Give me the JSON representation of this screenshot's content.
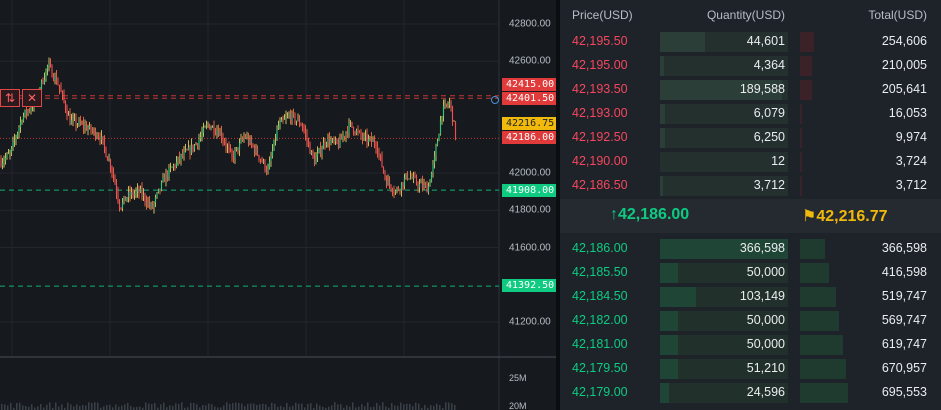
{
  "chart": {
    "axis_ticks": [
      "42800.00",
      "42600.00",
      "42000.00",
      "41800.00",
      "41600.00",
      "41200.00"
    ],
    "axis_tick_prices": [
      42800,
      42600,
      42000,
      41800,
      41600,
      41200
    ],
    "price_lines": [
      {
        "label": "42415.00",
        "price": 42415.0,
        "color": "#e03a3a",
        "style": "dashed"
      },
      {
        "label": "42401.50",
        "price": 42401.5,
        "color": "#e03a3a",
        "style": "dashed"
      },
      {
        "label": "42216.75",
        "price": 42216.75,
        "color": "#f0b90b",
        "style": "none"
      },
      {
        "label": "42186.00",
        "price": 42186.0,
        "color": "#e03a3a",
        "style": "dotted"
      },
      {
        "label": "41908.00",
        "price": 41908.0,
        "color": "#0ecb81",
        "style": "dashed"
      },
      {
        "label": "41392.50",
        "price": 41392.5,
        "color": "#0ecb81",
        "style": "dashed"
      }
    ],
    "volume_ticks": [
      "25M",
      "20M"
    ],
    "order_tools": {
      "reverse_icon": "⇅",
      "close_icon": "✕"
    },
    "colors": {
      "up": "#0ecb81",
      "down": "#f6465d",
      "wick_up": "#c8b860",
      "wick_down": "#e06040"
    }
  },
  "orderbook": {
    "headers": {
      "price": "Price(USD)",
      "quantity": "Quantity(USD)",
      "total": "Total(USD)"
    },
    "asks": [
      {
        "price": "42,195.50",
        "qty": "44,601",
        "total": "254,606",
        "qty_frac": 0.35,
        "tot_frac": 0.3
      },
      {
        "price": "42,195.00",
        "qty": "4,364",
        "total": "210,005",
        "qty_frac": 0.03,
        "tot_frac": 0.25
      },
      {
        "price": "42,193.50",
        "qty": "189,588",
        "total": "205,641",
        "qty_frac": 0.95,
        "tot_frac": 0.24
      },
      {
        "price": "42,193.00",
        "qty": "6,079",
        "total": "16,053",
        "qty_frac": 0.04,
        "tot_frac": 0.02
      },
      {
        "price": "42,192.50",
        "qty": "6,250",
        "total": "9,974",
        "qty_frac": 0.04,
        "tot_frac": 0.01
      },
      {
        "price": "42,190.00",
        "qty": "12",
        "total": "3,724",
        "qty_frac": 0.0,
        "tot_frac": 0.0
      },
      {
        "price": "42,186.50",
        "qty": "3,712",
        "total": "3,712",
        "qty_frac": 0.02,
        "tot_frac": 0.0
      }
    ],
    "last_price": "42,186.00",
    "last_arrow": "↑",
    "mark_price": "42,216.77",
    "mark_icon": "⚑",
    "bids": [
      {
        "price": "42,186.00",
        "qty": "366,598",
        "total": "366,598",
        "qty_frac": 1.0,
        "tot_frac": 0.53
      },
      {
        "price": "42,185.50",
        "qty": "50,000",
        "total": "416,598",
        "qty_frac": 0.14,
        "tot_frac": 0.6
      },
      {
        "price": "42,184.50",
        "qty": "103,149",
        "total": "519,747",
        "qty_frac": 0.28,
        "tot_frac": 0.75
      },
      {
        "price": "42,182.00",
        "qty": "50,000",
        "total": "569,747",
        "qty_frac": 0.14,
        "tot_frac": 0.82
      },
      {
        "price": "42,181.00",
        "qty": "50,000",
        "total": "619,747",
        "qty_frac": 0.14,
        "tot_frac": 0.89
      },
      {
        "price": "42,179.50",
        "qty": "51,210",
        "total": "670,957",
        "qty_frac": 0.14,
        "tot_frac": 0.96
      },
      {
        "price": "42,179.00",
        "qty": "24,596",
        "total": "695,553",
        "qty_frac": 0.07,
        "tot_frac": 1.0
      }
    ]
  }
}
